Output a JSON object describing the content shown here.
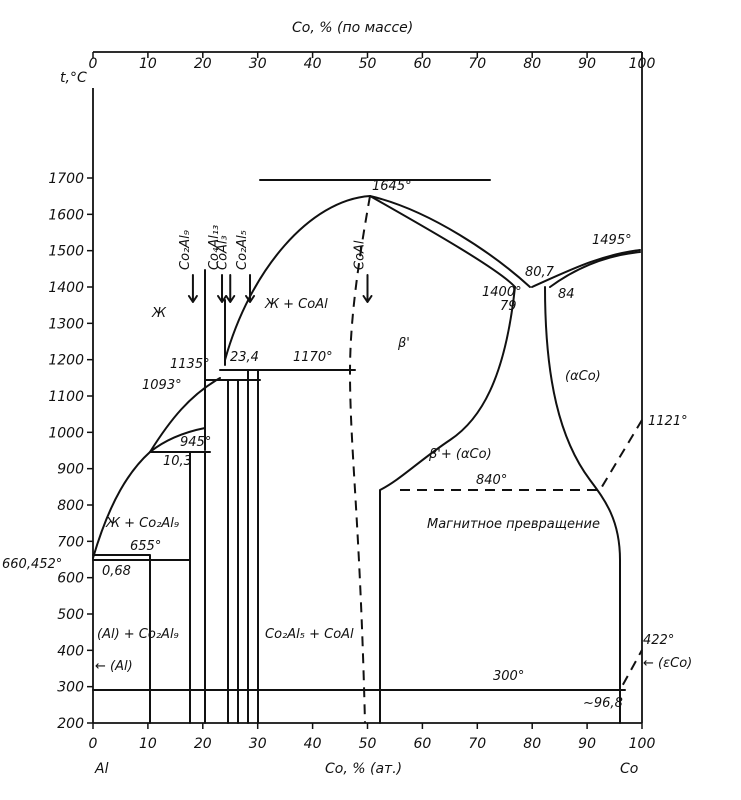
{
  "chart_data": {
    "type": "phase-diagram",
    "ylabel": "t,°C",
    "xlabel_bottom": "Co, % (ат.)",
    "xlabel_top": "Co, % (по массе)",
    "left_element": "Al",
    "right_element": "Co",
    "xlim": [
      0,
      100
    ],
    "ylim": [
      200,
      1700
    ],
    "y_ticks": [
      200,
      300,
      400,
      500,
      600,
      700,
      800,
      900,
      1000,
      1100,
      1200,
      1300,
      1400,
      1500,
      1600,
      1700
    ],
    "x_ticks_bottom": [
      0,
      10,
      20,
      30,
      40,
      50,
      60,
      70,
      80,
      90,
      100
    ],
    "x_ticks_top": [
      0,
      10,
      20,
      30,
      40,
      50,
      60,
      70,
      80,
      90,
      100
    ],
    "compounds": [
      {
        "label": "Co₂Al₉",
        "at": 18.2
      },
      {
        "label": "Co₄Al₁₃",
        "at": 23.5
      },
      {
        "label": "CoAl₃",
        "at": 25
      },
      {
        "label": "Co₂Al₅",
        "at": 28.6
      },
      {
        "label": "CoAl",
        "at": 50
      }
    ],
    "labels": {
      "t1645": "1645°",
      "t1495": "1495°",
      "c80_7": "80,7",
      "t1400": "1400°",
      "c79": "79",
      "c84": "84",
      "t1135": "1135°",
      "c23_4": "23,4",
      "t1170": "1170°",
      "t1093": "1093°",
      "t945": "945°",
      "c10_3": "10,3",
      "beta_prime": "β'",
      "alpha_co": "(αCo)",
      "t1121": "1121°",
      "beta_alpha": "β'+ (αCo)",
      "t840": "840°",
      "magnetic": "Магнитное превращение",
      "liquid": "Ж",
      "liquid_coal": "Ж + CoAl",
      "liquid_co2al9": "Ж + Co₂Al₉",
      "t655": "655°",
      "t660": "660,452°",
      "c068": "0,68",
      "al_co2al9": "(Al) + Co₂Al₉",
      "co2al5_coal": "Co₂Al₅ + CoAl",
      "al_phase": "← (Al)",
      "t422": "422°",
      "eps_co": "← (εCo)",
      "t300": "300°",
      "c96_8": "~96,8"
    },
    "key_points": [
      {
        "at": 0,
        "t": 660.452
      },
      {
        "at": 0.68,
        "t": 655
      },
      {
        "at": 10.3,
        "t": 945
      },
      {
        "at": 23.4,
        "t": 1135
      },
      {
        "at": 50,
        "t": 1645
      },
      {
        "at": 79,
        "t": 1400
      },
      {
        "at": 80.7,
        "t": 1400
      },
      {
        "at": 84,
        "t": 1400
      },
      {
        "at": 100,
        "t": 1495
      },
      {
        "at": 100,
        "t": 1121
      },
      {
        "at": 100,
        "t": 422
      },
      {
        "at": 96.8,
        "t": 300
      }
    ]
  }
}
